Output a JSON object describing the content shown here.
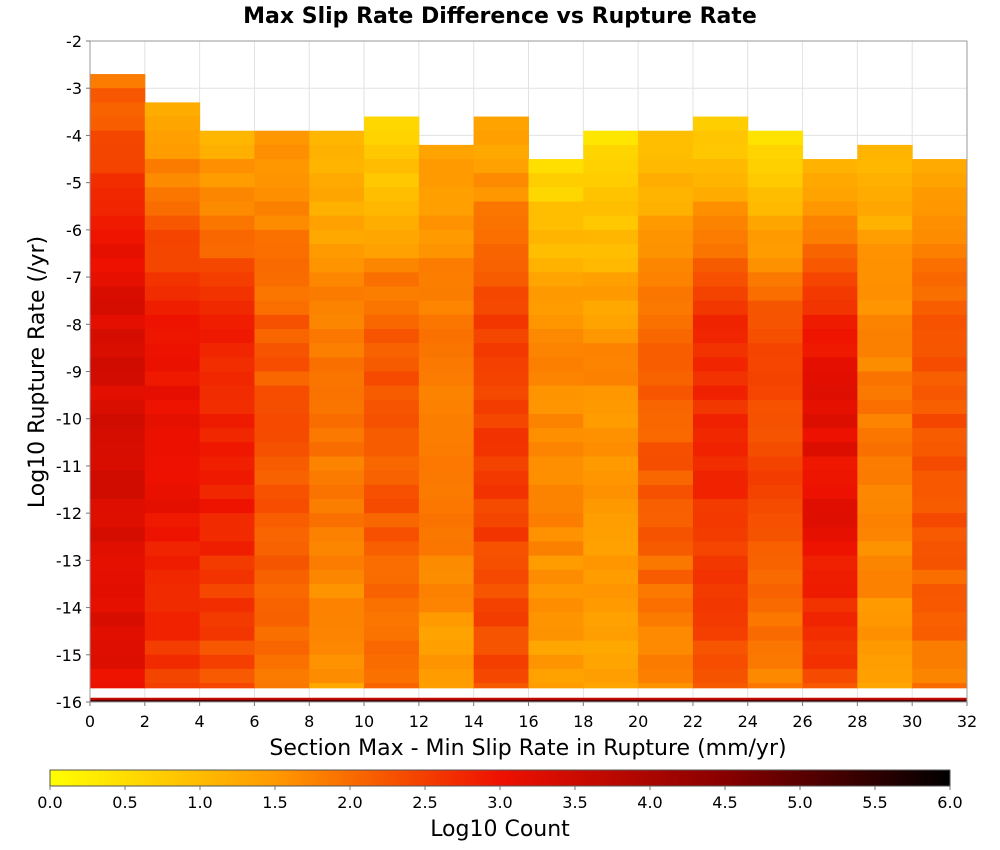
{
  "chart_data": {
    "type": "heatmap",
    "title": "Max Slip Rate Difference vs Rupture Rate",
    "xlabel": "Section Max - Min Slip Rate in Rupture (mm/yr)",
    "ylabel": "Log10 Rupture Rate (/yr)",
    "xlim": [
      0,
      32
    ],
    "ylim": [
      -16,
      -2
    ],
    "x_ticks": [
      "0",
      "2",
      "4",
      "6",
      "8",
      "10",
      "12",
      "14",
      "16",
      "18",
      "20",
      "22",
      "24",
      "26",
      "28",
      "30",
      "32"
    ],
    "y_ticks": [
      "-2",
      "-3",
      "-4",
      "-5",
      "-6",
      "-7",
      "-8",
      "-9",
      "-10",
      "-11",
      "-12",
      "-13",
      "-14",
      "-15",
      "-16"
    ],
    "x_bin_width": 2,
    "y_bin_height": 0.3,
    "grid": true,
    "colorbar": {
      "label": "Log10 Count",
      "min": 0,
      "max": 6,
      "ticks": [
        "0.0",
        "0.5",
        "1.0",
        "1.5",
        "2.0",
        "2.5",
        "3.0",
        "3.5",
        "4.0",
        "4.5",
        "5.0",
        "5.5",
        "6.0"
      ],
      "stops": [
        "#ffff00",
        "#ff9900",
        "#ee1100",
        "#880000",
        "#000000"
      ]
    },
    "columns": [
      {
        "x": 1,
        "top": -2.7,
        "low": 2.0,
        "mid": 3.3,
        "bottom": 3.1
      },
      {
        "x": 3,
        "top": -3.3,
        "low": 1.2,
        "mid": 3.0,
        "bottom": 2.5
      },
      {
        "x": 5,
        "top": -3.9,
        "low": 1.2,
        "mid": 2.85,
        "bottom": 2.2
      },
      {
        "x": 7,
        "top": -3.9,
        "low": 1.5,
        "mid": 2.2,
        "bottom": 1.9
      },
      {
        "x": 9,
        "top": -3.9,
        "low": 0.9,
        "mid": 1.9,
        "bottom": 1.4
      },
      {
        "x": 11,
        "top": -3.6,
        "low": 0.5,
        "mid": 2.2,
        "bottom": 1.9
      },
      {
        "x": 13,
        "top": -4.2,
        "low": 1.5,
        "mid": 1.8,
        "bottom": 1.3
      },
      {
        "x": 15,
        "top": -3.6,
        "low": 1.2,
        "mid": 2.5,
        "bottom": 2.3
      },
      {
        "x": 17,
        "top": -4.5,
        "low": 0.6,
        "mid": 1.7,
        "bottom": 1.3
      },
      {
        "x": 19,
        "top": -3.9,
        "low": 0.4,
        "mid": 1.6,
        "bottom": 1.2
      },
      {
        "x": 21,
        "top": -3.9,
        "low": 0.8,
        "mid": 2.2,
        "bottom": 1.6
      },
      {
        "x": 23,
        "top": -3.6,
        "low": 0.6,
        "mid": 2.7,
        "bottom": 2.2
      },
      {
        "x": 25,
        "top": -3.9,
        "low": 0.4,
        "mid": 2.4,
        "bottom": 1.7
      },
      {
        "x": 27,
        "top": -4.5,
        "low": 1.2,
        "mid": 3.1,
        "bottom": 2.3
      },
      {
        "x": 29,
        "top": -4.2,
        "low": 1.0,
        "mid": 1.8,
        "bottom": 1.4
      },
      {
        "x": 31,
        "top": -4.5,
        "low": 1.3,
        "mid": 2.3,
        "bottom": 1.8
      }
    ],
    "floor_row": {
      "y": -16,
      "value": 3.6
    }
  }
}
